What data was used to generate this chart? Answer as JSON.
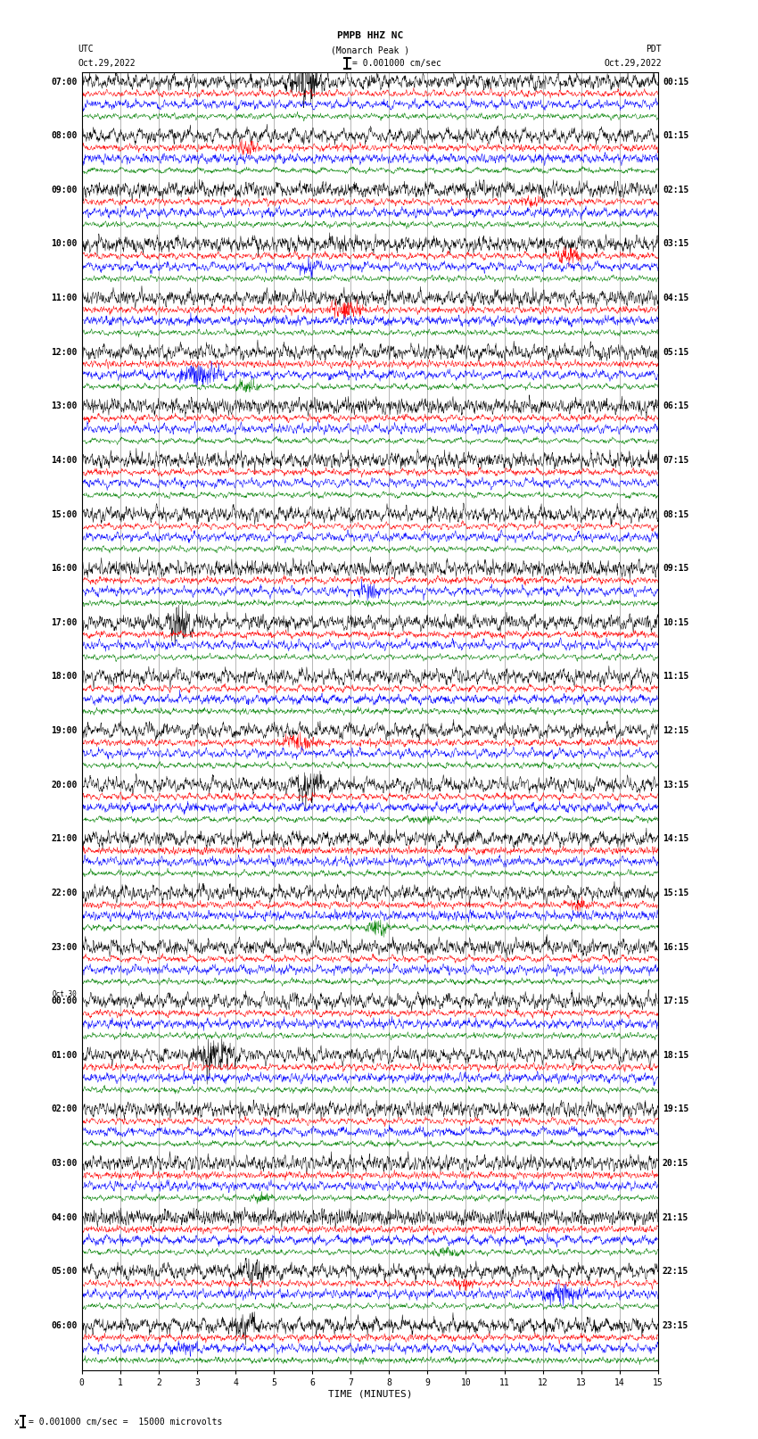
{
  "title_line1": "PMPB HHZ NC",
  "title_line2": "(Monarch Peak )",
  "scale_text": "= 0.001000 cm/sec",
  "footer_text": "= 0.001000 cm/sec =  15000 microvolts",
  "left_label": "UTC",
  "left_date": "Oct.29,2022",
  "right_label": "PDT",
  "right_date": "Oct.29,2022",
  "xlabel": "TIME (MINUTES)",
  "xmin": 0,
  "xmax": 15,
  "trace_colors": [
    "black",
    "red",
    "blue",
    "green"
  ],
  "utc_times": [
    "07:00",
    "08:00",
    "09:00",
    "10:00",
    "11:00",
    "12:00",
    "13:00",
    "14:00",
    "15:00",
    "16:00",
    "17:00",
    "18:00",
    "19:00",
    "20:00",
    "21:00",
    "22:00",
    "23:00",
    "Oct.30\n00:00",
    "01:00",
    "02:00",
    "03:00",
    "04:00",
    "05:00",
    "06:00"
  ],
  "pdt_times": [
    "00:15",
    "01:15",
    "02:15",
    "03:15",
    "04:15",
    "05:15",
    "06:15",
    "07:15",
    "08:15",
    "09:15",
    "10:15",
    "11:15",
    "12:15",
    "13:15",
    "14:15",
    "15:15",
    "16:15",
    "17:15",
    "18:15",
    "19:15",
    "20:15",
    "21:15",
    "22:15",
    "23:15"
  ],
  "num_rows": 24,
  "traces_per_row": 4,
  "bg_color": "#ffffff",
  "grid_color": "#777777",
  "figwidth": 8.5,
  "figheight": 16.13,
  "dpi": 100
}
